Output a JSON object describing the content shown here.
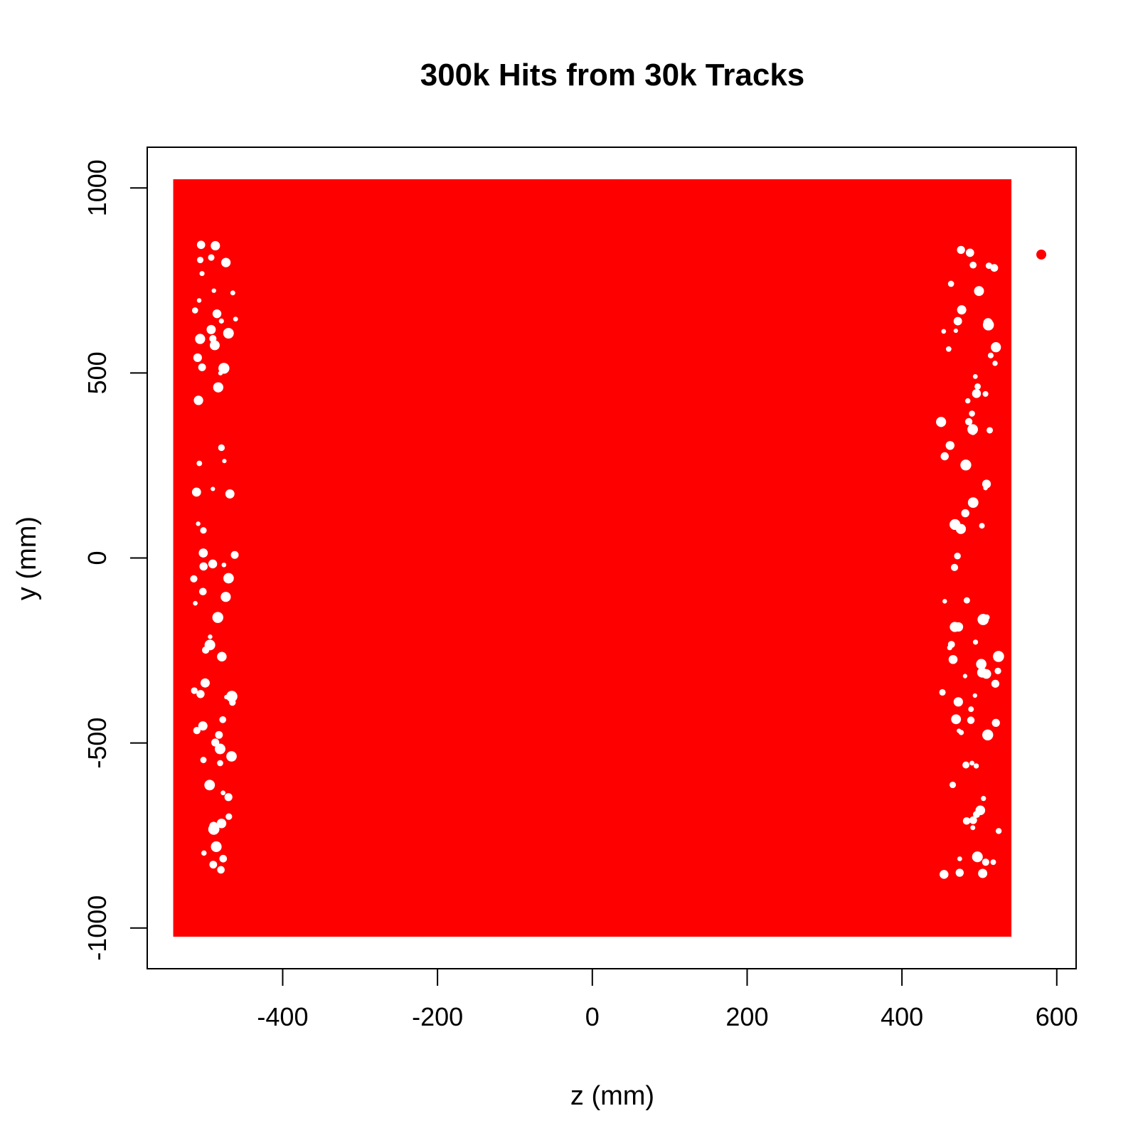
{
  "chart_data": {
    "type": "scatter",
    "title": "300k Hits from 30k Tracks",
    "xlabel": "z (mm)",
    "ylabel": "y (mm)",
    "xlim": [
      -575,
      625
    ],
    "ylim": [
      -1110,
      1110
    ],
    "xticks": [
      -400,
      -200,
      0,
      200,
      400,
      600
    ],
    "yticks": [
      -1000,
      -500,
      0,
      500,
      1000
    ],
    "xtick_labels": [
      "-400",
      "-200",
      "0",
      "200",
      "400",
      "600"
    ],
    "ytick_labels": [
      "-1000",
      "-500",
      "0",
      "500",
      "1000"
    ],
    "grid": false,
    "colors": {
      "points": "#ff0000"
    },
    "series": [
      {
        "point_cloud": {
          "z_range": [
            -535,
            535
          ],
          "y_range": [
            -1010,
            1010
          ],
          "dense_core_z_range": [
            -450,
            430
          ]
        },
        "points": [
          {
            "x": 580,
            "y": 820
          }
        ]
      }
    ]
  }
}
